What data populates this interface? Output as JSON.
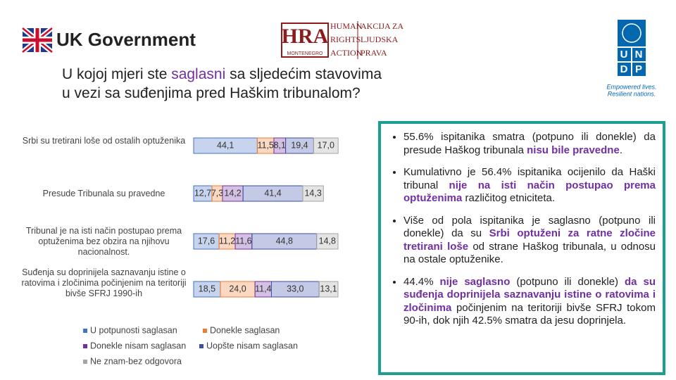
{
  "logos": {
    "uk": "UK Government",
    "hra_abbr": "HRA",
    "hra_en": [
      "HUMAN",
      "RIGHTS",
      "ACTION"
    ],
    "hra_local": [
      "AKCIJA ZA",
      "LJUDSKA",
      "PRAVA"
    ],
    "hra_country": "MONTENEGRO",
    "undp": [
      "U",
      "N",
      "D",
      "P"
    ],
    "undp_tagline": [
      "Empowered lives.",
      "Resilient nations."
    ]
  },
  "title": [
    "U kojoj mjeri ste ",
    "saglasni",
    " sa sljedećim stavovima",
    "u vezi sa suđenjima pred Haškim tribunalom?"
  ],
  "chart_data": {
    "type": "stacked-barh",
    "categories": [
      "Srbi su tretirani loše od ostalih optuženika",
      "Presude Tribunala su pravedne",
      "Tribunal je na isti način postupao prema optuženima bez obzira na njihovu nacionalnost.",
      "Suđenja su doprinijela saznavanju istine o ratovima i zločinima počinjenim na teritoriji bivše SFRJ 1990-ih"
    ],
    "series": [
      {
        "name": "U potpunosti saglasan",
        "color": "#4472c4",
        "values": [
          44.1,
          12.7,
          17.6,
          18.5
        ],
        "value_labels": [
          "44,1",
          "12,7",
          "17,6",
          "18,5"
        ]
      },
      {
        "name": "Donekle saglasan",
        "color": "#ed7d31",
        "values": [
          11.5,
          7.3,
          11.2,
          24.0
        ],
        "value_labels": [
          "11,5",
          "7,3",
          "11,2",
          "24,0"
        ]
      },
      {
        "name": "Donekle nisam saglasan",
        "color": "#7030a0",
        "values": [
          8.1,
          14.2,
          11.6,
          11.4
        ],
        "value_labels": [
          "8,1",
          "14,2",
          "11,6",
          "11,4"
        ]
      },
      {
        "name": "Uopšte nisam saglasan",
        "color": "#3c4fa8",
        "values": [
          19.4,
          41.4,
          44.8,
          33.0
        ],
        "value_labels": [
          "19,4",
          "41,4",
          "44,8",
          "33,0"
        ]
      },
      {
        "name": "Ne znam-bez odgovora",
        "color": "#a5a5a5",
        "values": [
          17.0,
          14.3,
          14.8,
          13.1
        ],
        "value_labels": [
          "17,0",
          "14,3",
          "14,8",
          "13,1"
        ]
      }
    ],
    "legend": "bottom"
  },
  "bullets": [
    [
      "55.6% ispitanika smatra (potpuno ili donekle) da presude Haškog tribunala ",
      "nisu bile pravedne",
      "."
    ],
    [
      "Kumulativno je 56.4% ispitanika ocijenilo da Haški tribunal ",
      "nije na isti način postupao prema optuženima",
      " različitog etniciteta."
    ],
    [
      "Više od pola ispitanika je saglasno (potpuno ili donekle) da su ",
      "Srbi optuženi za ratne zločine tretirani loše",
      " od strane Haškog tribunala, u odnosu na ostale optuženike."
    ],
    [
      "44.4% ",
      "nije saglasno",
      " (potpuno ili donekle) ",
      "da su suđenja doprinijela saznavanju istine o ratovima i zločinima",
      " počinjenim na teritoriji bivše SFRJ tokom 90-ih, dok njih 42.5% smatra da jesu doprinjela."
    ]
  ]
}
